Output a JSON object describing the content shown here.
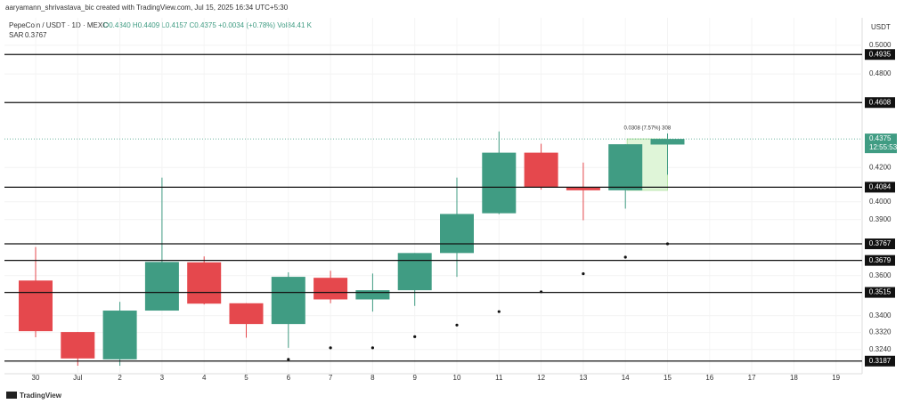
{
  "chart_data": {
    "type": "candlestick",
    "credit": "aaryamann_shrivastava_bic created with TradingView.com, Jul 15, 2025 16:34 UTC+5:30",
    "legend": {
      "symbol": "PepeCoin / USDT · 1D · MEXC",
      "ohlc": "O0.4340 H0.4409 L0.4157 C0.4375 +0.0034 (+0.78%) Vol84.41 K"
    },
    "indicator": {
      "name": "SAR",
      "label": "0.3767"
    },
    "currency": "USDT",
    "brand": "TradingView",
    "categories": [
      "30",
      "Jul",
      "2",
      "3",
      "4",
      "5",
      "6",
      "7",
      "8",
      "9",
      "10",
      "11",
      "12",
      "13",
      "14",
      "15",
      "16",
      "17",
      "18",
      "19"
    ],
    "series": [
      {
        "name": "PepeCoin / USDT",
        "up_color": "#409c83",
        "down_color": "#e5484d",
        "open": [
          0.3575,
          0.3322,
          0.3195,
          0.3425,
          0.3669,
          0.3461,
          0.336,
          0.3589,
          0.348,
          0.3526,
          0.3718,
          0.3935,
          0.429,
          0.4083,
          0.4066,
          0.434
        ],
        "high": [
          0.375,
          0.3322,
          0.3468,
          0.414,
          0.37,
          0.3461,
          0.3617,
          0.3625,
          0.3611,
          0.3718,
          0.414,
          0.4422,
          0.4345,
          0.423,
          0.4342,
          0.4409
        ],
        "low": [
          0.3297,
          0.3166,
          0.3166,
          0.3425,
          0.3455,
          0.3295,
          0.3248,
          0.3461,
          0.342,
          0.3448,
          0.3594,
          0.393,
          0.407,
          0.3896,
          0.3961,
          0.4157
        ],
        "close": [
          0.3326,
          0.3199,
          0.3425,
          0.3671,
          0.3459,
          0.336,
          0.3594,
          0.348,
          0.3526,
          0.3718,
          0.3931,
          0.429,
          0.4083,
          0.4066,
          0.4342,
          0.4375
        ]
      }
    ],
    "sar": {
      "name": "SAR",
      "color": "#111111",
      "values": [
        null,
        null,
        null,
        null,
        null,
        null,
        0.3195,
        0.3248,
        0.3248,
        0.33,
        0.3355,
        0.342,
        0.3518,
        0.361,
        0.3696,
        0.3767
      ]
    },
    "levels": [
      0.4935,
      0.4608,
      0.4084,
      0.3767,
      0.3679,
      0.3515,
      0.3187
    ],
    "last_price": {
      "value": 0.4375,
      "countdown": "12:55:53"
    },
    "measure": {
      "label": "0.0308 (7.57%) 308",
      "from": 0.4066,
      "to": 0.4375
    },
    "ylim": [
      0.313,
      0.52
    ],
    "log_scale": true,
    "yticks": [
      {
        "value": 0.5,
        "label": "0.5000"
      },
      {
        "value": 0.48,
        "label": "0.4800"
      },
      {
        "value": 0.42,
        "label": "0.4200"
      },
      {
        "value": 0.4,
        "label": "0.4000"
      },
      {
        "value": 0.39,
        "label": "0.3900"
      },
      {
        "value": 0.36,
        "label": "0.3600"
      },
      {
        "value": 0.34,
        "label": "0.3400"
      },
      {
        "value": 0.332,
        "label": "0.3320"
      },
      {
        "value": 0.324,
        "label": "0.3240"
      }
    ],
    "grid": true
  }
}
